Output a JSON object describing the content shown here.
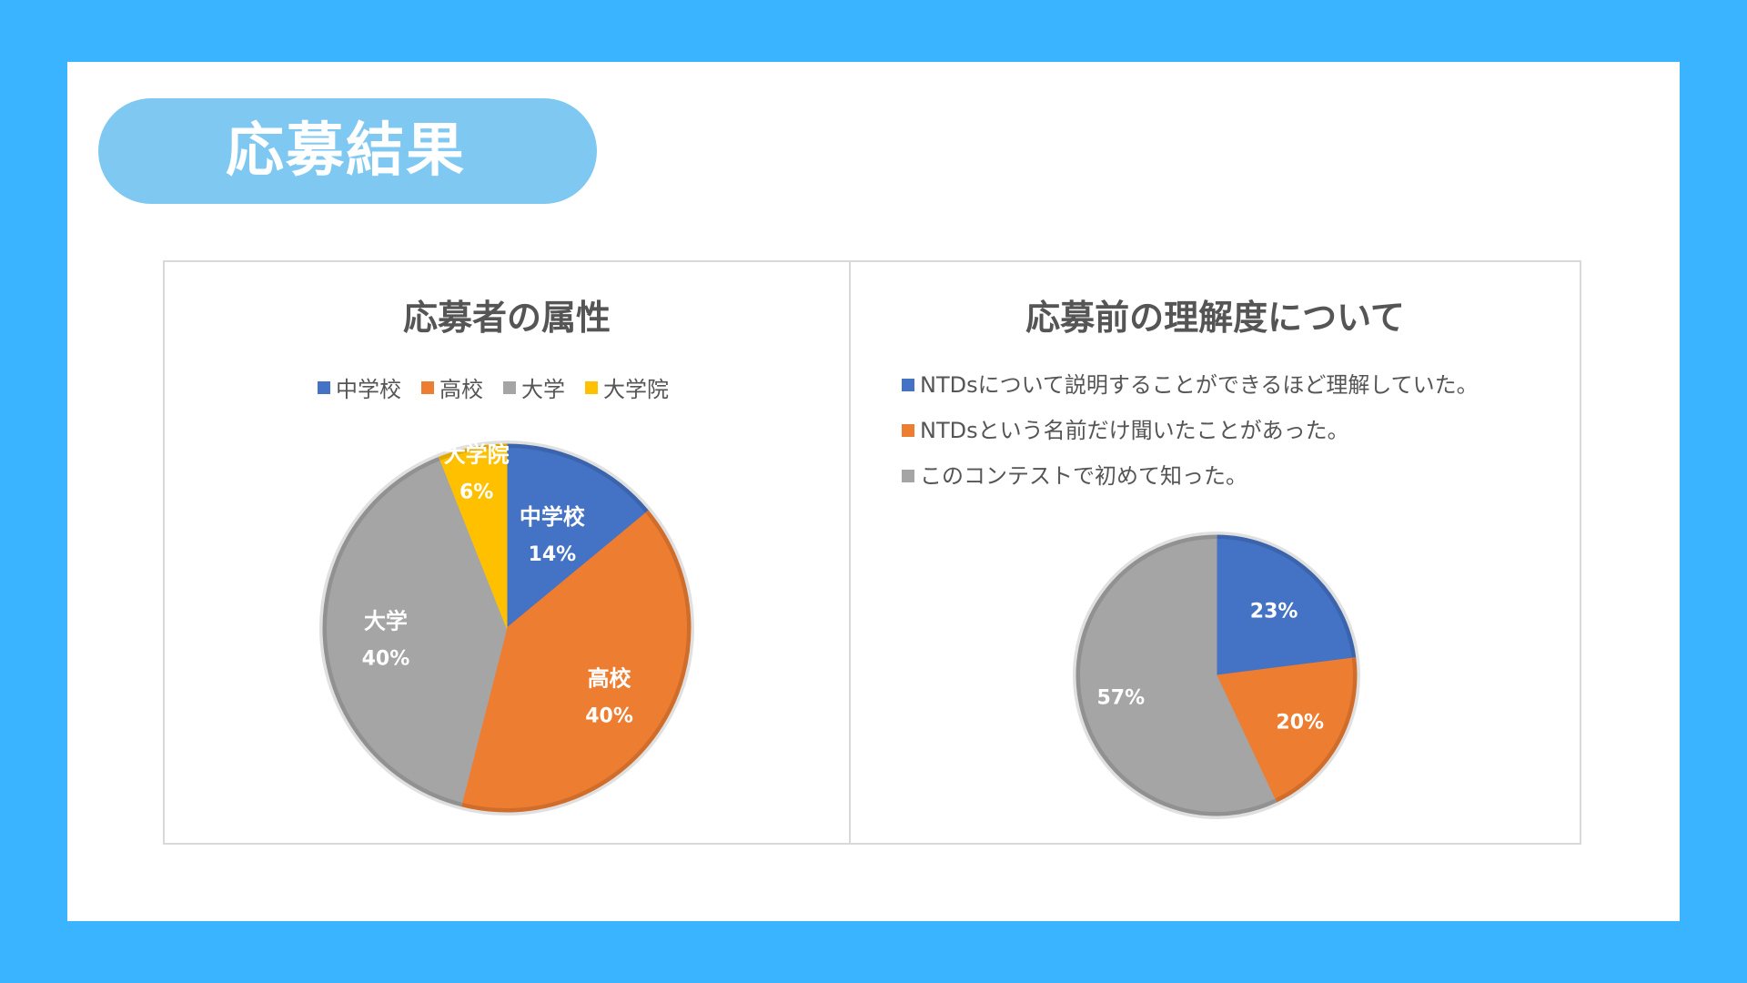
{
  "page": {
    "title": "応募結果"
  },
  "colors": {
    "blue": "#4472c4",
    "orange": "#ed7d31",
    "gray": "#a5a5a5",
    "yellow": "#ffc000"
  },
  "chart_data": [
    {
      "type": "pie",
      "title": "応募者の属性",
      "legend_position": "top",
      "categories": [
        "中学校",
        "高校",
        "大学",
        "大学院"
      ],
      "values": [
        14,
        40,
        40,
        6
      ],
      "labels": [
        "14%",
        "40%",
        "40%",
        "6%"
      ]
    },
    {
      "type": "pie",
      "title": "応募前の理解度について",
      "legend_position": "top-left",
      "categories": [
        "NTDsについて説明することができるほど理解していた。",
        "NTDsという名前だけ聞いたことがあった。",
        "このコンテストで初めて知った。"
      ],
      "values": [
        23,
        20,
        57
      ],
      "labels": [
        "23%",
        "20%",
        "57%"
      ]
    }
  ]
}
